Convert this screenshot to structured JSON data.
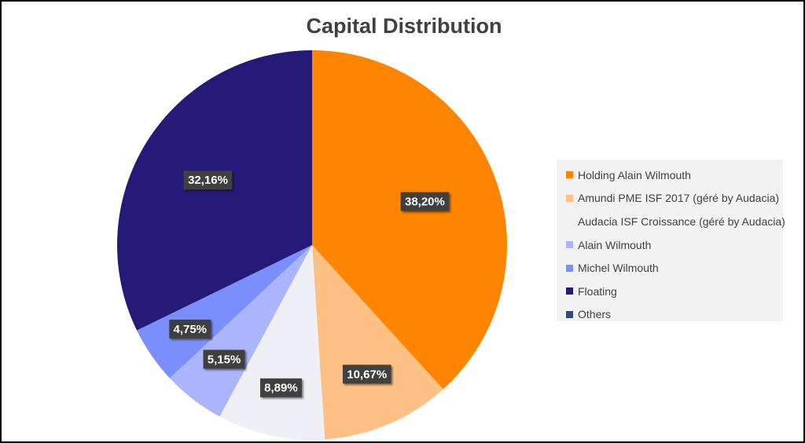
{
  "chart_data": {
    "type": "pie",
    "title": "Capital Distribution",
    "categories": [
      "Holding Alain Wilmouth",
      "Amundi PME ISF 2017 (géré by Audacia)",
      "Audacia ISF Croissance (géré by Audacia)",
      "Alain Wilmouth",
      "Michel Wilmouth",
      "Floating",
      "Others"
    ],
    "values": [
      38.2,
      10.67,
      8.89,
      5.15,
      4.75,
      32.16,
      0
    ],
    "data_labels": [
      "38,20%",
      "10,67%",
      "8,89%",
      "5,15%",
      "4,75%",
      "32,16%",
      ""
    ],
    "colors": [
      "#ff8400",
      "#fdc283",
      "#eef0f5",
      "#abb5fb",
      "#7a8ffb",
      "#261a78",
      "#2f4b7c"
    ],
    "legend_position": "right",
    "label_style": {
      "box_color": "#404040",
      "text_color": "#ffffff"
    }
  }
}
